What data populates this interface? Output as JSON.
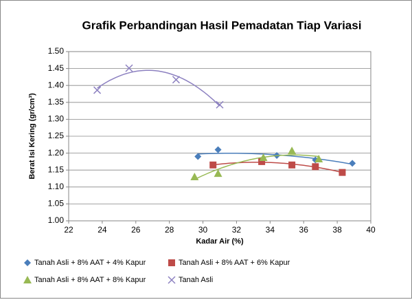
{
  "chart_data": {
    "type": "scatter",
    "title": "Grafik Perbandingan Hasil Pemadatan Tiap Variasi",
    "x_label": "Kadar Air (%)",
    "y_label": "Berat Isi Kering (gr/cm³)",
    "xlim": [
      22,
      40
    ],
    "xticks": [
      22,
      24,
      26,
      28,
      30,
      32,
      34,
      36,
      38,
      40
    ],
    "ylim": [
      1.0,
      1.5
    ],
    "yticks": [
      {
        "value": 1.0,
        "label": "1.00"
      },
      {
        "value": 1.05,
        "label": "1.05"
      },
      {
        "value": 1.1,
        "label": "1.10"
      },
      {
        "value": 1.15,
        "label": "1.15"
      },
      {
        "value": 1.2,
        "label": "1.20"
      },
      {
        "value": 1.25,
        "label": "1.25"
      },
      {
        "value": 1.3,
        "label": "1.30"
      },
      {
        "value": 1.35,
        "label": "1.35"
      },
      {
        "value": 1.4,
        "label": "1.40"
      },
      {
        "value": 1.45,
        "label": "1.45"
      },
      {
        "value": 1.5,
        "label": "1.50"
      }
    ],
    "grid": true,
    "legend": "bottom",
    "trendline": "polynomial",
    "series": [
      {
        "name": "Tanah Asli + 8% AAT + 4% Kapur",
        "color": "#4a7ebb",
        "marker": "diamond",
        "x": [
          29.7,
          30.9,
          34.4,
          36.7,
          38.9
        ],
        "values": [
          1.19,
          1.21,
          1.193,
          1.18,
          1.17
        ]
      },
      {
        "name": "Tanah Asli + 8% AAT + 6% Kapur",
        "color": "#be4b48",
        "marker": "square",
        "x": [
          30.6,
          33.5,
          35.3,
          36.7,
          38.3
        ],
        "values": [
          1.165,
          1.175,
          1.165,
          1.16,
          1.143
        ]
      },
      {
        "name": "Tanah Asli + 8% AAT + 8% Kapur",
        "color": "#98b954",
        "marker": "triangle",
        "x": [
          29.5,
          30.9,
          33.6,
          35.3,
          36.9
        ],
        "values": [
          1.13,
          1.14,
          1.187,
          1.207,
          1.183
        ]
      },
      {
        "name": "Tanah Asli",
        "color": "#8c80c0",
        "marker": "x",
        "x": [
          23.7,
          25.6,
          28.4,
          31.0
        ],
        "values": [
          1.386,
          1.451,
          1.417,
          1.343
        ]
      }
    ]
  }
}
